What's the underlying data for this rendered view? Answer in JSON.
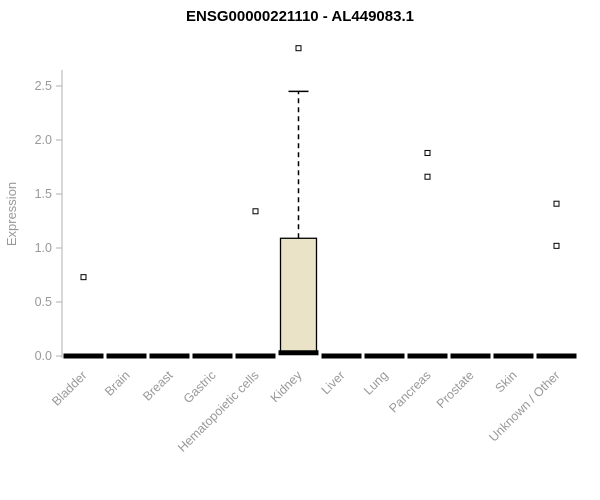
{
  "chart_data": {
    "type": "boxplot",
    "title": "ENSG00000221110 - AL449083.1",
    "xlabel": "",
    "ylabel": "Expression",
    "ylim": [
      0,
      2.95
    ],
    "yticks": [
      0.0,
      0.5,
      1.0,
      1.5,
      2.0,
      2.5
    ],
    "grid": false,
    "legend": "none",
    "categories": [
      "Bladder",
      "Brain",
      "Breast",
      "Gastric",
      "Hematopoietic cells",
      "Kidney",
      "Liver",
      "Lung",
      "Pancreas",
      "Prostate",
      "Skin",
      "Unknown / Other"
    ],
    "series": [
      {
        "label": "Bladder",
        "median": 0,
        "q1": 0,
        "q3": 0,
        "whisker_low": 0,
        "whisker_high": 0,
        "outliers": [
          0.73
        ]
      },
      {
        "label": "Brain",
        "median": 0,
        "q1": 0,
        "q3": 0,
        "whisker_low": 0,
        "whisker_high": 0,
        "outliers": []
      },
      {
        "label": "Breast",
        "median": 0,
        "q1": 0,
        "q3": 0,
        "whisker_low": 0,
        "whisker_high": 0,
        "outliers": []
      },
      {
        "label": "Gastric",
        "median": 0,
        "q1": 0,
        "q3": 0,
        "whisker_low": 0,
        "whisker_high": 0,
        "outliers": []
      },
      {
        "label": "Hematopoietic cells",
        "median": 0,
        "q1": 0,
        "q3": 0,
        "whisker_low": 0,
        "whisker_high": 0,
        "outliers": [
          1.34
        ]
      },
      {
        "label": "Kidney",
        "median": 0.03,
        "q1": 0.03,
        "q3": 1.09,
        "whisker_low": 0.03,
        "whisker_high": 2.45,
        "outliers": [
          2.85
        ]
      },
      {
        "label": "Liver",
        "median": 0,
        "q1": 0,
        "q3": 0,
        "whisker_low": 0,
        "whisker_high": 0,
        "outliers": []
      },
      {
        "label": "Lung",
        "median": 0,
        "q1": 0,
        "q3": 0,
        "whisker_low": 0,
        "whisker_high": 0,
        "outliers": []
      },
      {
        "label": "Pancreas",
        "median": 0,
        "q1": 0,
        "q3": 0,
        "whisker_low": 0,
        "whisker_high": 0,
        "outliers": [
          1.66,
          1.88
        ]
      },
      {
        "label": "Prostate",
        "median": 0,
        "q1": 0,
        "q3": 0,
        "whisker_low": 0,
        "whisker_high": 0,
        "outliers": []
      },
      {
        "label": "Skin",
        "median": 0,
        "q1": 0,
        "q3": 0,
        "whisker_low": 0,
        "whisker_high": 0,
        "outliers": []
      },
      {
        "label": "Unknown / Other",
        "median": 0,
        "q1": 0,
        "q3": 0,
        "whisker_low": 0,
        "whisker_high": 0,
        "outliers": [
          1.02,
          1.41
        ]
      }
    ],
    "colors": {
      "box_fill": "#eae3c8",
      "box_stroke": "#000000",
      "median": "#000000",
      "whisker": "#000000",
      "outlier_stroke": "#000000",
      "outlier_fill": "#ffffff",
      "axis_line": "#b0b0b0",
      "tick_label": "#999999",
      "title": "#000000",
      "background": "#ffffff"
    }
  }
}
